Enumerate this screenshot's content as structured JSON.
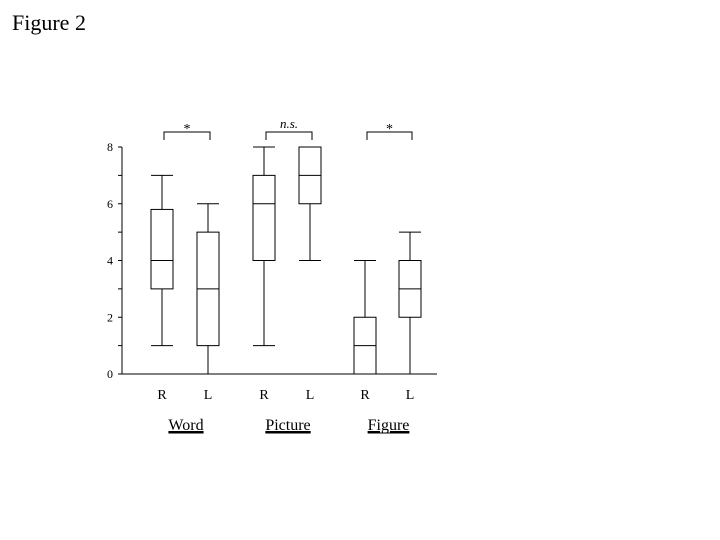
{
  "page_title": "Figure 2",
  "chart_data": {
    "type": "boxplot",
    "title": "",
    "ylim": [
      0,
      8
    ],
    "yticks": [
      0,
      2,
      4,
      6,
      8
    ],
    "grid": false,
    "groups": [
      {
        "name": "Word",
        "significance": "*",
        "boxes": [
          {
            "label": "R",
            "min": 1,
            "q1": 3,
            "median": 4,
            "q3": 5.8,
            "max": 7
          },
          {
            "label": "L",
            "min": 0,
            "q1": 1,
            "median": 3,
            "q3": 5,
            "max": 6
          }
        ]
      },
      {
        "name": "Picture",
        "significance": "n.s.",
        "boxes": [
          {
            "label": "R",
            "min": 1,
            "q1": 4,
            "median": 6,
            "q3": 7,
            "max": 8
          },
          {
            "label": "L",
            "min": 4,
            "q1": 6,
            "median": 7,
            "q3": 8,
            "max": 8
          }
        ]
      },
      {
        "name": "Figure",
        "significance": "*",
        "boxes": [
          {
            "label": "R",
            "min": 0,
            "q1": 0,
            "median": 1,
            "q3": 2,
            "max": 4
          },
          {
            "label": "L",
            "min": 0,
            "q1": 2,
            "median": 3,
            "q3": 4,
            "max": 5
          }
        ]
      }
    ]
  }
}
